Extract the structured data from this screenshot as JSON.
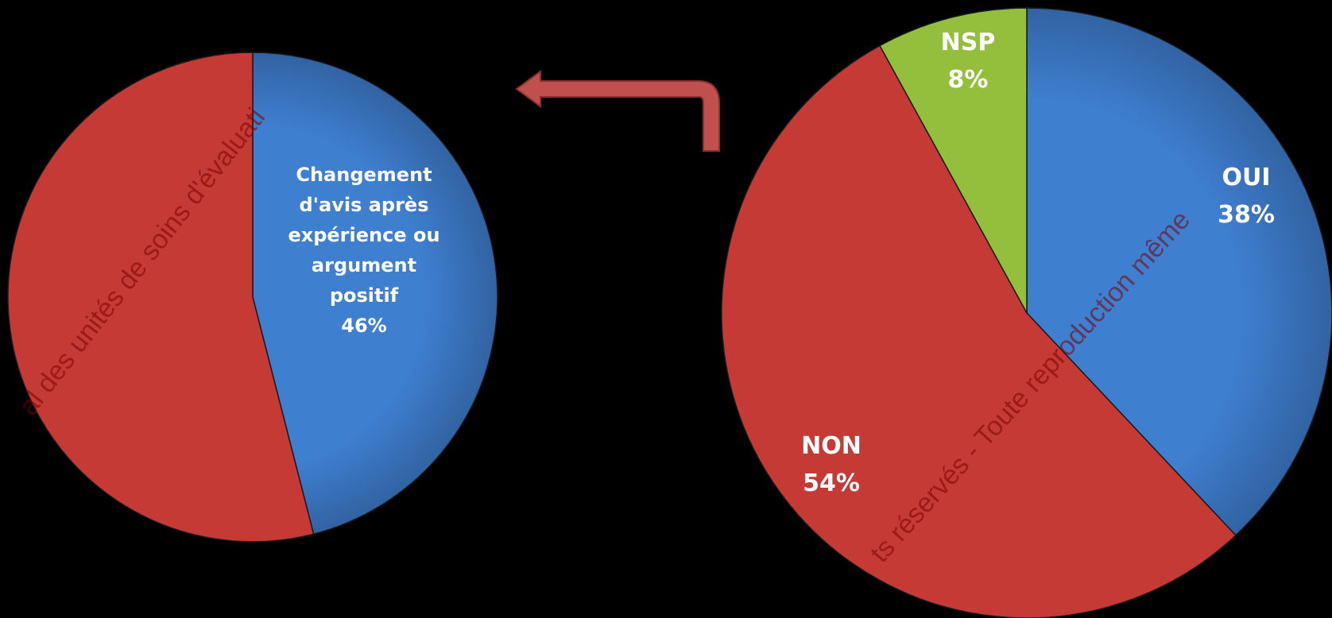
{
  "colors": {
    "background": "#000000",
    "blue": "#3f7fd0",
    "red": "#c63a35",
    "green": "#93bf3c",
    "arrow": "#c0504d",
    "label": "#ffffff",
    "watermark": "#7a0000"
  },
  "chart_data": [
    {
      "type": "pie",
      "slices": [
        {
          "label_lines": [
            "Changement",
            "d'avis après",
            "expérience ou",
            "argument",
            "positif"
          ],
          "percent_text": "46%",
          "value": 46,
          "color_key": "blue",
          "labelled": true
        },
        {
          "label_lines": [],
          "percent_text": "",
          "value": 54,
          "color_key": "red",
          "labelled": false
        }
      ]
    },
    {
      "type": "pie",
      "slices": [
        {
          "label_lines": [
            "OUI"
          ],
          "percent_text": "38%",
          "value": 38,
          "color_key": "blue",
          "labelled": true
        },
        {
          "label_lines": [
            "NON"
          ],
          "percent_text": "54%",
          "value": 54,
          "color_key": "red",
          "labelled": true
        },
        {
          "label_lines": [
            "NSP"
          ],
          "percent_text": "8%",
          "value": 8,
          "color_key": "green",
          "labelled": true
        }
      ]
    }
  ],
  "watermark": {
    "left_text": "al des unités de soins d'évaluati",
    "right_text": "ts réservés - Toute reproduction même"
  },
  "arrow": {
    "icon": "curved-arrow-left-icon"
  }
}
